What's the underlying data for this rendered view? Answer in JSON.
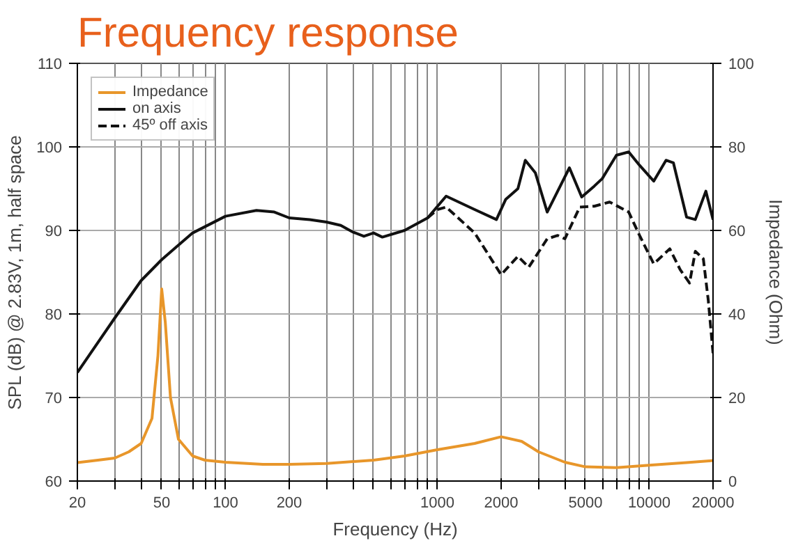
{
  "chart_data": {
    "type": "line",
    "title": "Frequency response",
    "xlabel": "Frequency (Hz)",
    "ylabel": "SPL (dB) @ 2.83V, 1m, half space",
    "y2label": "Impedance (Ohm)",
    "log": "x",
    "grid": true,
    "legend": "top left",
    "xlim": [
      20,
      20000
    ],
    "ylim": [
      60,
      110
    ],
    "y2lim": [
      0,
      100
    ],
    "xticks": [
      20,
      {
        "value": 30,
        "label": null
      },
      {
        "value": 40,
        "label": null
      },
      50,
      {
        "value": 60,
        "label": null
      },
      {
        "value": 70,
        "label": null
      },
      {
        "value": 80,
        "label": null
      },
      {
        "value": 90,
        "label": null
      },
      100,
      200,
      {
        "value": 300,
        "label": null
      },
      {
        "value": 400,
        "label": null
      },
      {
        "value": 500,
        "label": null
      },
      {
        "value": 600,
        "label": null
      },
      {
        "value": 700,
        "label": null
      },
      {
        "value": 800,
        "label": null
      },
      {
        "value": 900,
        "label": null
      },
      1000,
      2000,
      {
        "value": 3000,
        "label": null
      },
      {
        "value": 4000,
        "label": null
      },
      5000,
      {
        "value": 6000,
        "label": null
      },
      {
        "value": 7000,
        "label": null
      },
      {
        "value": 8000,
        "label": null
      },
      {
        "value": 9000,
        "label": null
      },
      10000,
      20000
    ],
    "yticks": [
      60,
      70,
      80,
      90,
      100,
      110
    ],
    "y2ticks": [
      0,
      20,
      40,
      60,
      80,
      100
    ],
    "series": [
      {
        "name": "Impedance",
        "color": "#e8962a",
        "axis": "y2",
        "line_style": "solid",
        "x": [
          20,
          25,
          30,
          35,
          40,
          45,
          48,
          50,
          52,
          55,
          60,
          70,
          80,
          100,
          150,
          200,
          300,
          500,
          700,
          1000,
          1500,
          2000,
          2500,
          3000,
          4000,
          5000,
          7000,
          10000,
          15000,
          20000
        ],
        "values": [
          4.4,
          5,
          5.5,
          7,
          9,
          15,
          30,
          46,
          38,
          20,
          10,
          6,
          5,
          4.5,
          4,
          4,
          4.2,
          5,
          6,
          7.5,
          9,
          10.6,
          9.5,
          7,
          4.5,
          3.4,
          3.2,
          3.8,
          4.4,
          4.9
        ]
      },
      {
        "name": "on axis",
        "color": "#111111",
        "axis": "y",
        "line_style": "solid",
        "x": [
          20,
          30,
          40,
          50,
          70,
          100,
          140,
          170,
          200,
          250,
          300,
          350,
          400,
          450,
          500,
          550,
          700,
          900,
          1100,
          1500,
          1900,
          2100,
          2400,
          2600,
          2900,
          3300,
          4200,
          4800,
          5500,
          6000,
          7000,
          8000,
          9000,
          10500,
          12000,
          13000,
          15000,
          16500,
          18500,
          20000
        ],
        "values": [
          73,
          79.5,
          84,
          86.5,
          89.7,
          91.7,
          92.4,
          92.2,
          91.5,
          91.3,
          91,
          90.6,
          89.8,
          89.3,
          89.7,
          89.2,
          90,
          91.5,
          94.1,
          92.5,
          91.3,
          93.7,
          95,
          98.4,
          96.9,
          92.2,
          97.5,
          94,
          95.3,
          96.2,
          99,
          99.4,
          97.8,
          95.9,
          98.4,
          98.1,
          91.6,
          91.3,
          94.7,
          91.3
        ]
      },
      {
        "name": "45º off axis",
        "color": "#111111",
        "axis": "y",
        "line_style": "dashed",
        "x": [
          900,
          1000,
          1100,
          1500,
          2000,
          2400,
          2700,
          3300,
          3700,
          4000,
          4700,
          5500,
          6500,
          8000,
          9000,
          10500,
          12500,
          14000,
          15500,
          16500,
          18000,
          19000,
          20000
        ],
        "values": [
          91.5,
          92.5,
          92.8,
          89.7,
          84.7,
          86.9,
          85.6,
          89,
          89.4,
          89,
          92.8,
          92.9,
          93.4,
          92.2,
          89.4,
          86,
          87.8,
          85.3,
          83.7,
          87.5,
          86.6,
          81.6,
          75.3
        ]
      }
    ]
  }
}
